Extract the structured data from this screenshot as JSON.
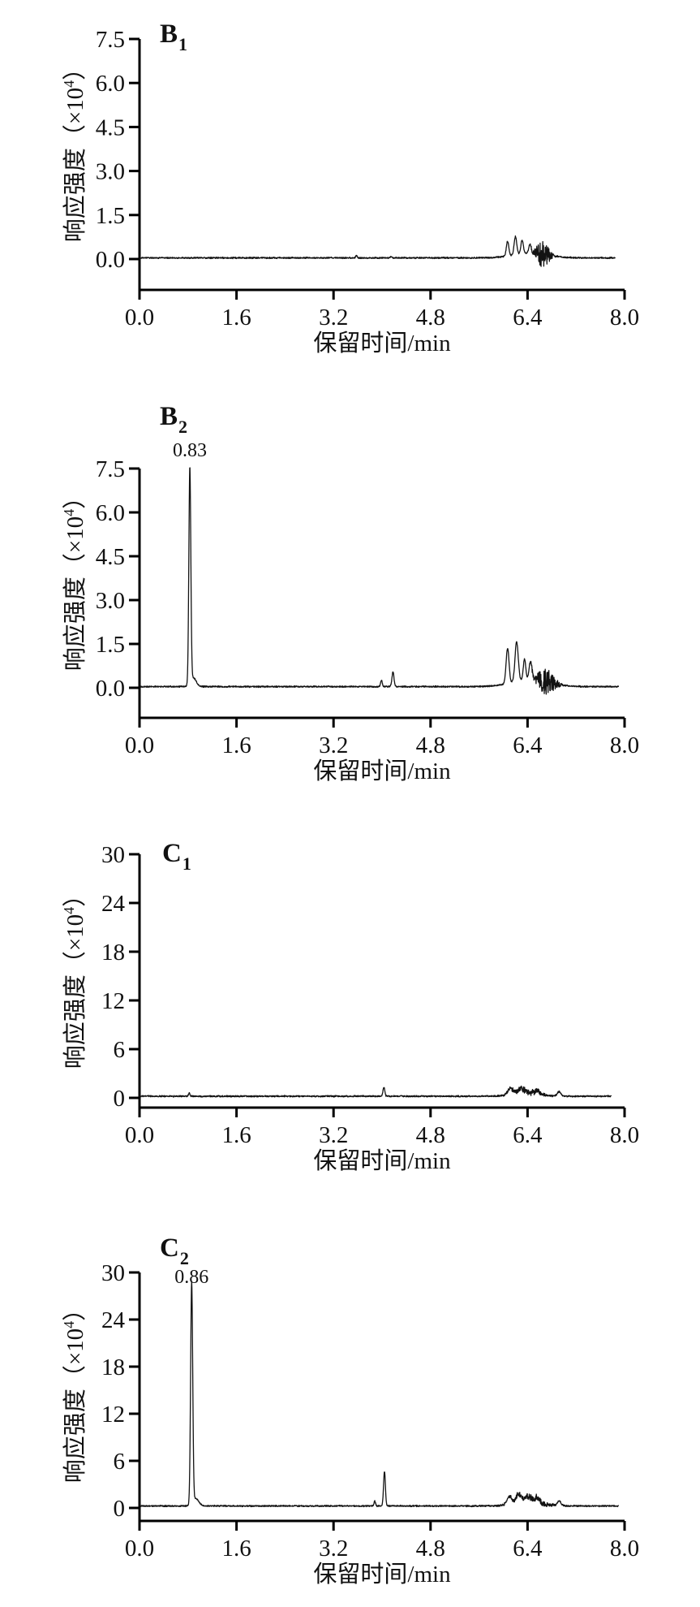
{
  "figure": {
    "background": "#ffffff",
    "trace_color": "#131313",
    "axis_color": "#000000"
  },
  "chart_data": [
    {
      "id": "B1",
      "type": "line",
      "title_base": "B",
      "title_sub": "1",
      "ylabel_prefix": "响应强度（×10",
      "ylabel_sup": "4",
      "ylabel_suffix": "）",
      "xlabel": "保留时间/min",
      "xlim": [
        0,
        8
      ],
      "ylim": [
        0,
        7.5
      ],
      "x_tick_values": [
        0,
        1.6,
        3.2,
        4.8,
        6.4,
        8.0
      ],
      "x_ticks": [
        "0.0",
        "1.6",
        "3.2",
        "4.8",
        "6.4",
        "8.0"
      ],
      "y_tick_values": [
        7.5,
        6.0,
        4.5,
        3.0,
        1.5,
        0.0
      ],
      "y_ticks": [
        "7.5",
        "6.0",
        "4.5",
        "3.0",
        "1.5",
        "0.0"
      ],
      "peak_label": null,
      "trace": {
        "end": 7.85,
        "baseline": 0.04,
        "noise": 0.03,
        "seed": 11,
        "peaks": [
          [
            3.58,
            0.09,
            0.012
          ],
          [
            4.15,
            0.05,
            0.01
          ],
          [
            6.07,
            0.5,
            0.02
          ],
          [
            6.2,
            0.62,
            0.022
          ],
          [
            6.31,
            0.46,
            0.02
          ],
          [
            6.44,
            0.3,
            0.02
          ]
        ],
        "broad": [
          6.45,
          0.16,
          0.28
        ],
        "jitter": [
          6.65,
          0.45,
          0.09
        ]
      }
    },
    {
      "id": "B2",
      "type": "line",
      "title_base": "B",
      "title_sub": "2",
      "ylabel_prefix": "响应强度（×10",
      "ylabel_sup": "4",
      "ylabel_suffix": "）",
      "xlabel": "保留时间/min",
      "xlim": [
        0,
        8
      ],
      "ylim": [
        0,
        7.5
      ],
      "x_tick_values": [
        0,
        1.6,
        3.2,
        4.8,
        6.4,
        8.0
      ],
      "x_ticks": [
        "0.0",
        "1.6",
        "3.2",
        "4.8",
        "6.4",
        "8.0"
      ],
      "y_tick_values": [
        7.5,
        6.0,
        4.5,
        3.0,
        1.5,
        0.0
      ],
      "y_ticks": [
        "7.5",
        "6.0",
        "4.5",
        "3.0",
        "1.5",
        "0.0"
      ],
      "peak_label": {
        "text": "0.83",
        "t": 0.83
      },
      "trace": {
        "end": 7.9,
        "baseline": 0.04,
        "noise": 0.03,
        "seed": 22,
        "peaks": [
          [
            0.83,
            7.4,
            0.016
          ],
          [
            0.89,
            0.3,
            0.045
          ],
          [
            3.99,
            0.22,
            0.014
          ],
          [
            4.18,
            0.5,
            0.017
          ],
          [
            6.07,
            1.2,
            0.024
          ],
          [
            6.22,
            1.35,
            0.027
          ],
          [
            6.35,
            0.72,
            0.02
          ],
          [
            6.45,
            0.6,
            0.025
          ]
        ],
        "broad": [
          6.45,
          0.24,
          0.3
        ],
        "jitter": [
          6.7,
          0.45,
          0.12
        ]
      }
    },
    {
      "id": "C1",
      "type": "line",
      "title_base": "C",
      "title_sub": "1",
      "ylabel_prefix": "响应强度（×10",
      "ylabel_sup": "4",
      "ylabel_suffix": "）",
      "xlabel": "保留时间/min",
      "xlim": [
        0,
        8
      ],
      "ylim": [
        0,
        30
      ],
      "x_tick_values": [
        0,
        1.6,
        3.2,
        4.8,
        6.4,
        8.0
      ],
      "x_ticks": [
        "0.0",
        "1.6",
        "3.2",
        "4.8",
        "6.4",
        "8.0"
      ],
      "y_tick_values": [
        30,
        24,
        18,
        12,
        6,
        0
      ],
      "y_ticks": [
        "30",
        "24",
        "18",
        "12",
        "6",
        "0"
      ],
      "peak_label": null,
      "trace": {
        "end": 7.78,
        "baseline": 0.2,
        "noise": 0.11,
        "seed": 33,
        "peaks": [
          [
            0.82,
            0.4,
            0.012
          ],
          [
            4.03,
            1.1,
            0.015
          ],
          [
            6.12,
            0.8,
            0.045
          ],
          [
            6.3,
            0.68,
            0.07
          ],
          [
            6.55,
            0.45,
            0.06
          ],
          [
            6.92,
            0.55,
            0.028
          ]
        ],
        "broad": [
          6.4,
          0.25,
          0.25
        ],
        "jitter": [
          6.4,
          0.4,
          0.22
        ]
      }
    },
    {
      "id": "C2",
      "type": "line",
      "title_base": "C",
      "title_sub": "2",
      "ylabel_prefix": "响应强度（×10",
      "ylabel_sup": "4",
      "ylabel_suffix": "）",
      "xlabel": "保留时间/min",
      "xlim": [
        0,
        8
      ],
      "ylim": [
        0,
        30
      ],
      "x_tick_values": [
        0,
        1.6,
        3.2,
        4.8,
        6.4,
        8.0
      ],
      "x_ticks": [
        "0.0",
        "1.6",
        "3.2",
        "4.8",
        "6.4",
        "8.0"
      ],
      "y_tick_values": [
        30,
        24,
        18,
        12,
        6,
        0
      ],
      "y_ticks": [
        "30",
        "24",
        "18",
        "12",
        "6",
        "0"
      ],
      "peak_label": {
        "text": "0.86",
        "t": 0.86
      },
      "trace": {
        "end": 7.9,
        "baseline": 0.25,
        "noise": 0.11,
        "seed": 44,
        "peaks": [
          [
            0.86,
            28.2,
            0.017
          ],
          [
            0.93,
            0.9,
            0.05
          ],
          [
            3.88,
            0.6,
            0.013
          ],
          [
            4.04,
            4.4,
            0.015
          ],
          [
            6.1,
            1.05,
            0.04
          ],
          [
            6.25,
            1.3,
            0.04
          ],
          [
            6.4,
            0.95,
            0.05
          ],
          [
            6.55,
            0.75,
            0.05
          ],
          [
            6.92,
            0.6,
            0.03
          ]
        ],
        "broad": [
          6.4,
          0.35,
          0.25
        ],
        "jitter": [
          6.45,
          0.4,
          0.26
        ]
      }
    }
  ]
}
